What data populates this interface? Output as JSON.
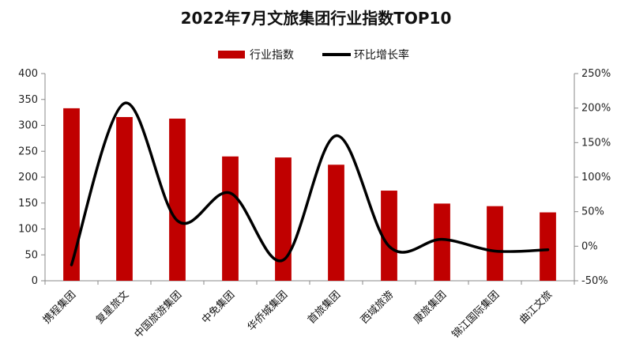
{
  "chart_data": {
    "type": "bar",
    "title": "2022年7月文旅集团行业指数TOP10",
    "categories": [
      "携程集团",
      "复星旅文",
      "中国旅游集团",
      "中免集团",
      "华侨城集团",
      "首旅集团",
      "西域旅游",
      "康旅集团",
      "锦江国际集团",
      "曲江文旅"
    ],
    "series": [
      {
        "name": "行业指数",
        "kind": "bar",
        "axis": "left",
        "color": "#c00000",
        "values": [
          333,
          316,
          313,
          240,
          238,
          224,
          174,
          149,
          144,
          132
        ]
      },
      {
        "name": "环比增长率",
        "kind": "line",
        "axis": "right",
        "color": "#000000",
        "values": [
          -27,
          207,
          37,
          77,
          -20,
          160,
          0,
          10,
          -7,
          -5
        ]
      }
    ],
    "ylim_left": [
      0,
      400
    ],
    "yticks_left": [
      "0",
      "50",
      "100",
      "150",
      "200",
      "250",
      "300",
      "350",
      "400"
    ],
    "ylim_right": [
      -50,
      250
    ],
    "yticks_right": [
      "-50%",
      "0%",
      "50%",
      "100%",
      "150%",
      "200%",
      "250%"
    ],
    "legend_position": "top-center",
    "grid": false
  }
}
